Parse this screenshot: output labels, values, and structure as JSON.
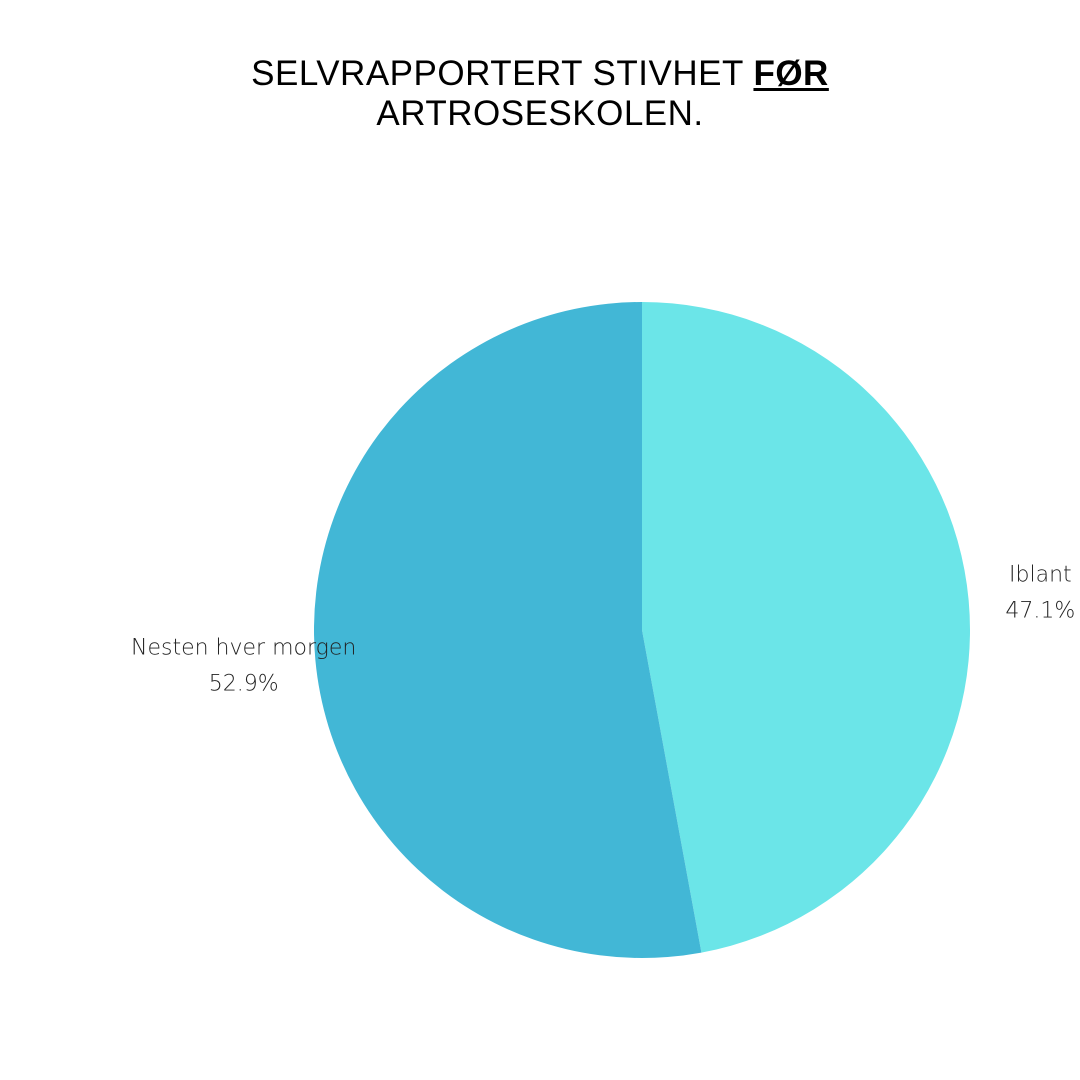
{
  "chart_data": {
    "type": "pie",
    "title": {
      "line1_before": "SELVRAPPORTERT STIVHET ",
      "line1_emphasis": "FØR",
      "line2": "ARTROSESKOLEN."
    },
    "slices": [
      {
        "label": "Iblant",
        "value": 47.1,
        "value_label": "47.1%",
        "color": "#6be5e8"
      },
      {
        "label": "Nesten hver morgen",
        "value": 52.9,
        "value_label": "52.9%",
        "color": "#42b7d6"
      }
    ],
    "start_angle_deg": 0,
    "direction": "clockwise",
    "legend": "none"
  }
}
